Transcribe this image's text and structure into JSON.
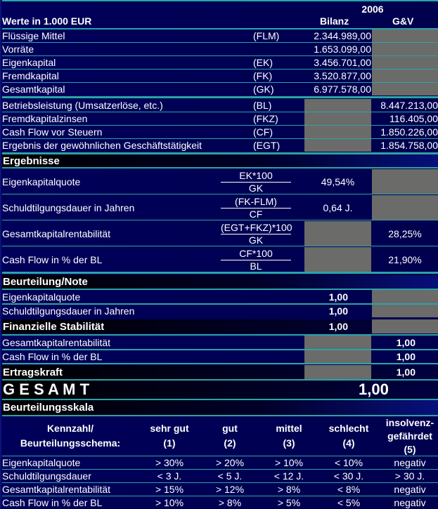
{
  "header": {
    "year": "2006",
    "units": "Werte in 1.000 EUR",
    "col_bilanz": "Bilanz",
    "col_gv": "G&V"
  },
  "input_rows": [
    {
      "label": "Flüssige Mittel",
      "abbr": "(FLM)",
      "bilanz": "2.344.989,00",
      "gv": ""
    },
    {
      "label": "Vorräte",
      "abbr": "",
      "bilanz": "1.653.099,00",
      "gv": ""
    },
    {
      "label": "Eigenkapital",
      "abbr": "(EK)",
      "bilanz": "3.456.701,00",
      "gv": ""
    },
    {
      "label": "Fremdkapital",
      "abbr": "(FK)",
      "bilanz": "3.520.877,00",
      "gv": ""
    },
    {
      "label": "Gesamtkapital",
      "abbr": "(GK)",
      "bilanz": "6.977.578,00",
      "gv": ""
    },
    {
      "label": "Betriebsleistung (Umsatzerlöse, etc.)",
      "abbr": "(BL)",
      "bilanz": "",
      "gv": "8.447.213,00"
    },
    {
      "label": "Fremdkapitalzinsen",
      "abbr": "(FKZ)",
      "bilanz": "",
      "gv": "116.405,00"
    },
    {
      "label": "Cash Flow vor Steuern",
      "abbr": "(CF)",
      "bilanz": "",
      "gv": "1.850.226,00"
    },
    {
      "label": "Ergebnis der gewöhnlichen Geschäftstätigkeit",
      "abbr": "(EGT)",
      "bilanz": "",
      "gv": "1.854.758,00"
    }
  ],
  "ergebnisse": {
    "title": "Ergebnisse",
    "rows": [
      {
        "label": "Eigenkapitalquote",
        "num": "EK*100",
        "den": "GK",
        "bilanz": "49,54%",
        "gv": ""
      },
      {
        "label": "Schuldtilgungsdauer in Jahren",
        "num": "(FK-FLM)",
        "den": "CF",
        "bilanz": "0,64 J.",
        "gv": ""
      },
      {
        "label": "Gesamtkapitalrentabilität",
        "num": "(EGT+FKZ)*100",
        "den": "GK",
        "bilanz": "",
        "gv": "28,25%"
      },
      {
        "label": "Cash Flow in % der BL",
        "num": "CF*100",
        "den": "BL",
        "bilanz": "",
        "gv": "21,90%"
      }
    ]
  },
  "beurteilung": {
    "title": "Beurteilung/Note",
    "eigenkapitalquote": {
      "label": "Eigenkapitalquote",
      "value": "1,00"
    },
    "schuldtilgung": {
      "label": "Schuldtilgungsdauer in Jahren",
      "value": "1,00"
    },
    "finanzielle_stabilitaet": {
      "label": "Finanzielle Stabilität",
      "value": "1,00"
    },
    "gkr": {
      "label": "Gesamtkapitalrentabilität",
      "value": "1,00"
    },
    "cashflow": {
      "label": "Cash Flow in % der BL",
      "value": "1,00"
    },
    "ertragskraft": {
      "label": "Ertragskraft",
      "value": "1,00"
    },
    "gesamt": {
      "label": "G E S A M T",
      "value": "1,00"
    }
  },
  "skala": {
    "title": "Beurteilungsskala",
    "headers": [
      "Kennzahl/\nBeurteilungsschema:",
      "sehr gut\n(1)",
      "gut\n(2)",
      "mittel\n(3)",
      "schlecht\n(4)",
      "insolvenz-\ngefährdet\n(5)"
    ],
    "rows": [
      [
        "Eigenkapitalquote",
        "> 30%",
        "> 20%",
        "> 10%",
        "< 10%",
        "negativ"
      ],
      [
        "Schuldtilgungsdauer",
        "< 3 J.",
        "< 5 J.",
        "< 12 J.",
        "< 30 J.",
        "> 30 J."
      ],
      [
        "Gesamtkapitalrentabilität",
        "> 15%",
        "> 12%",
        "> 8%",
        "< 8%",
        "negativ"
      ],
      [
        "Cash Flow in % der BL",
        "> 10%",
        "> 8%",
        "> 5%",
        "< 5%",
        "negativ"
      ]
    ]
  },
  "colors": {
    "background": "#00004e",
    "separator": "#2aa4a6",
    "gray_cell": "#6b6b69"
  }
}
